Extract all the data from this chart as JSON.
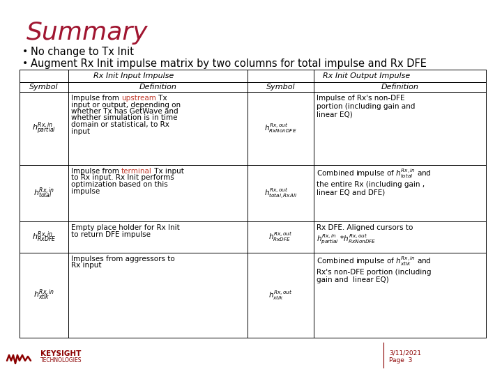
{
  "title": "Summary",
  "title_color": "#A01530",
  "title_fontsize": 26,
  "bullet1": "No change to Tx Init",
  "bullet2": "Augment Rx Init impulse matrix by two columns for total impulse and Rx DFE",
  "bullet_fontsize": 10.5,
  "bg_color": "#FFFFFF",
  "table_header1": "Rx Init Input Impulse",
  "table_header2": "Rx Init Output Impulse",
  "col_headers": [
    "Symbol",
    "Definition",
    "Symbol",
    "Definition"
  ],
  "footer_date": "3/11/2021",
  "footer_page": "Page  3",
  "footer_color": "#8B0000",
  "highlight_color": "#C0392B",
  "line_color": "#8B0000"
}
